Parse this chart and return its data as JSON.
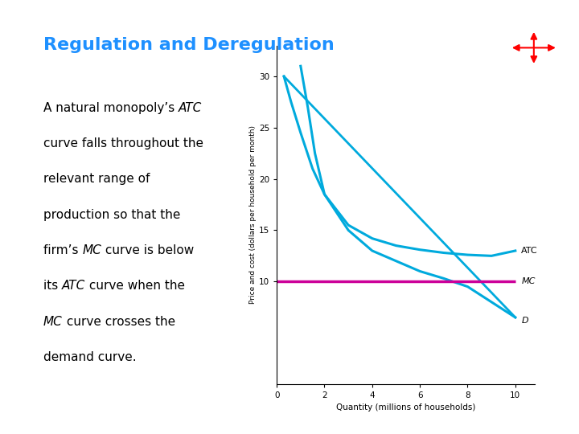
{
  "title": "Regulation and Deregulation",
  "title_color": "#1E90FF",
  "title_fontsize": 16,
  "bg_color": "#FFFFFF",
  "header_bar_color": "#3399FF",
  "left_bar_color": "#3399FF",
  "xlabel": "Quantity (millions of households)",
  "ylabel": "Price and cost (dollars per household per month)",
  "xlim": [
    0,
    10.8
  ],
  "ylim": [
    0,
    33
  ],
  "xticks": [
    0,
    2,
    4,
    6,
    8,
    10
  ],
  "yticks": [
    10,
    15,
    20,
    25,
    30
  ],
  "curve_color": "#00AADD",
  "mc_color": "#CC0099",
  "mc_value": 10,
  "atc_label": "ATC",
  "mc_label": "MC",
  "d_label": "D",
  "body_text_fontsize": 11,
  "body_fontfamily": "DejaVu Sans"
}
